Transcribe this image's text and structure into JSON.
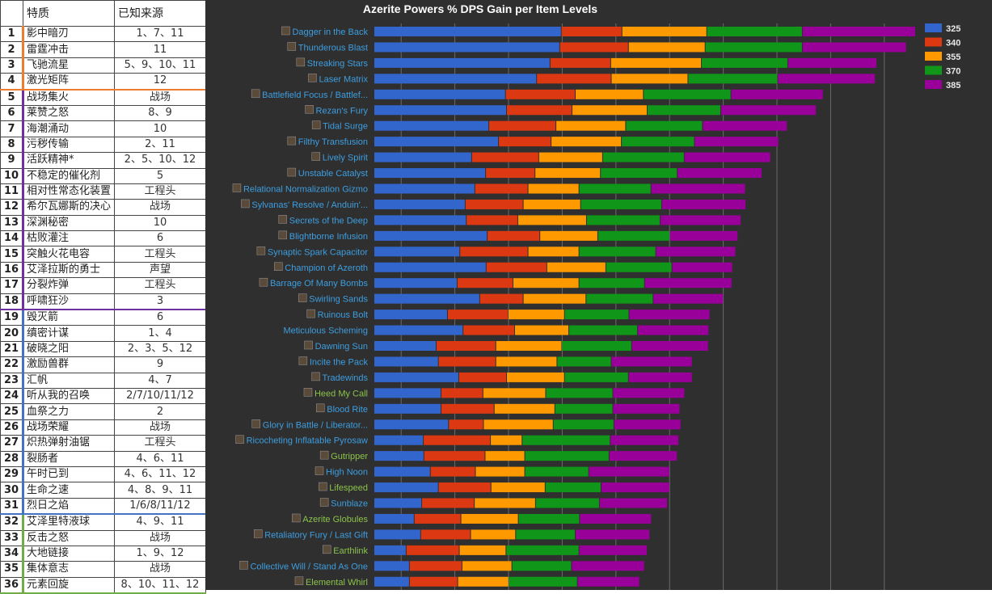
{
  "table": {
    "headers": [
      "",
      "特质",
      "已知来源"
    ],
    "rows": [
      {
        "num": "1",
        "name": "影中暗刃",
        "source": "1、7、11",
        "group": "orange"
      },
      {
        "num": "2",
        "name": "雷霆冲击",
        "source": "11",
        "group": "orange"
      },
      {
        "num": "3",
        "name": "飞驰流星",
        "source": "5、9、10、11",
        "group": "orange"
      },
      {
        "num": "4",
        "name": "激光矩阵",
        "source": "12",
        "group": "orange"
      },
      {
        "num": "5",
        "name": "战场集火",
        "source": "战场",
        "group": "purple"
      },
      {
        "num": "6",
        "name": "莱赞之怒",
        "source": "8、9",
        "group": "purple"
      },
      {
        "num": "7",
        "name": "海潮涌动",
        "source": "10",
        "group": "purple"
      },
      {
        "num": "8",
        "name": "污秽传输",
        "source": "2、11",
        "group": "purple"
      },
      {
        "num": "9",
        "name": "活跃精神*",
        "source": "2、5、10、12",
        "group": "purple"
      },
      {
        "num": "10",
        "name": "不稳定的催化剂",
        "source": "5",
        "group": "purple"
      },
      {
        "num": "11",
        "name": "相对性常态化装置",
        "source": "工程头",
        "group": "purple"
      },
      {
        "num": "12",
        "name": "希尔瓦娜斯的决心",
        "source": "战场",
        "group": "purple"
      },
      {
        "num": "13",
        "name": "深渊秘密",
        "source": "10",
        "group": "purple"
      },
      {
        "num": "14",
        "name": "枯败灌注",
        "source": "6",
        "group": "purple"
      },
      {
        "num": "15",
        "name": "突触火花电容",
        "source": "工程头",
        "group": "purple"
      },
      {
        "num": "16",
        "name": "艾泽拉斯的勇士",
        "source": "声望",
        "group": "purple"
      },
      {
        "num": "17",
        "name": "分裂炸弹",
        "source": "工程头",
        "group": "purple"
      },
      {
        "num": "18",
        "name": "呼啸狂沙",
        "source": "3",
        "group": "purple"
      },
      {
        "num": "19",
        "name": "毁灭箭",
        "source": "6",
        "group": "blue"
      },
      {
        "num": "20",
        "name": "缜密计谋",
        "source": "1、4",
        "group": "blue"
      },
      {
        "num": "21",
        "name": "破晓之阳",
        "source": "2、3、5、12",
        "group": "blue"
      },
      {
        "num": "22",
        "name": "激励兽群",
        "source": "9",
        "group": "blue"
      },
      {
        "num": "23",
        "name": "汇帆",
        "source": "4、7",
        "group": "blue"
      },
      {
        "num": "24",
        "name": "听从我的召唤",
        "source": "2/7/10/11/12",
        "group": "blue"
      },
      {
        "num": "25",
        "name": "血祭之力",
        "source": "2",
        "group": "blue"
      },
      {
        "num": "26",
        "name": "战场荣耀",
        "source": "战场",
        "group": "blue"
      },
      {
        "num": "27",
        "name": "炽热弹射油锯",
        "source": "工程头",
        "group": "blue"
      },
      {
        "num": "28",
        "name": "裂肠者",
        "source": "4、6、11",
        "group": "blue"
      },
      {
        "num": "29",
        "name": "午时已到",
        "source": "4、6、11、12",
        "group": "blue"
      },
      {
        "num": "30",
        "name": "生命之速",
        "source": "4、8、9、11",
        "group": "blue"
      },
      {
        "num": "31",
        "name": "烈日之焰",
        "source": "1/6/8/11/12",
        "group": "blue"
      },
      {
        "num": "32",
        "name": "艾泽里特液球",
        "source": "4、9、11",
        "group": "green"
      },
      {
        "num": "33",
        "name": "反击之怒",
        "source": "战场",
        "group": "green"
      },
      {
        "num": "34",
        "name": "大地链接",
        "source": "1、9、12",
        "group": "green"
      },
      {
        "num": "35",
        "name": "集体意志",
        "source": "战场",
        "group": "green"
      },
      {
        "num": "36",
        "name": "元素回旋",
        "source": "8、10、11、12",
        "group": "green"
      }
    ]
  },
  "chart_data": {
    "type": "bar",
    "orientation": "horizontal",
    "stacked": true,
    "title": "Azerite Powers % DPS Gain per Item Levels",
    "xlabel": "",
    "ylabel": "",
    "grid": true,
    "gridlines_at": [
      0.5,
      1.5,
      2.5,
      3.5,
      4.5,
      5.5,
      6.5,
      7.5,
      8.5,
      9.5
    ],
    "xlim": [
      0,
      10.5
    ],
    "legend_position": "top-right",
    "label_colors": {
      "default": "#3d9ee0",
      "alt": "#8bc34a"
    },
    "categories": [
      {
        "label": "Dagger in the Back",
        "icon": "dagger-icon",
        "color": "default"
      },
      {
        "label": "Thunderous Blast",
        "icon": "thunder-icon",
        "color": "default"
      },
      {
        "label": "Streaking Stars",
        "icon": "stars-icon",
        "color": "default"
      },
      {
        "label": "Laser Matrix",
        "icon": "laser-icon",
        "color": "default"
      },
      {
        "label": "Battlefield Focus / Battlef...",
        "icon": "battlefield-icon",
        "color": "default"
      },
      {
        "label": "Rezan's Fury",
        "icon": "rezan-icon",
        "color": "default"
      },
      {
        "label": "Tidal Surge",
        "icon": "tidal-icon",
        "color": "default"
      },
      {
        "label": "Filthy Transfusion",
        "icon": "filthy-icon",
        "color": "default"
      },
      {
        "label": "Lively Spirit",
        "icon": "spirit-icon",
        "color": "default"
      },
      {
        "label": "Unstable Catalyst",
        "icon": "catalyst-icon",
        "color": "default"
      },
      {
        "label": "Relational Normalization Gizmo",
        "icon": "gizmo-icon",
        "color": "default"
      },
      {
        "label": "Sylvanas' Resolve / Anduin'...",
        "icon": "resolve-icon",
        "color": "default"
      },
      {
        "label": "Secrets of the Deep",
        "icon": "deep-icon",
        "color": "default"
      },
      {
        "label": "Blightborne Infusion",
        "icon": "blight-icon",
        "color": "default"
      },
      {
        "label": "Synaptic Spark Capacitor",
        "icon": "spark-icon",
        "color": "default"
      },
      {
        "label": "Champion of Azeroth",
        "icon": "champion-icon",
        "color": "default"
      },
      {
        "label": "Barrage Of Many Bombs",
        "icon": "bombs-icon",
        "color": "default"
      },
      {
        "label": "Swirling Sands",
        "icon": "sands-icon",
        "color": "default"
      },
      {
        "label": "Ruinous Bolt",
        "icon": "bolt-icon",
        "color": "default"
      },
      {
        "label": "Meticulous Scheming",
        "icon": "",
        "color": "default"
      },
      {
        "label": "Dawning Sun",
        "icon": "sun-icon",
        "color": "default"
      },
      {
        "label": "Incite the Pack",
        "icon": "pack-icon",
        "color": "default"
      },
      {
        "label": "Tradewinds",
        "icon": "wind-icon",
        "color": "default"
      },
      {
        "label": "Heed My Call",
        "icon": "call-icon",
        "color": "alt"
      },
      {
        "label": "Blood Rite",
        "icon": "blood-icon",
        "color": "default"
      },
      {
        "label": "Glory in Battle / Liberator...",
        "icon": "glory-icon",
        "color": "default"
      },
      {
        "label": "Ricocheting Inflatable Pyrosaw",
        "icon": "pyrosaw-icon",
        "color": "default"
      },
      {
        "label": "Gutripper",
        "icon": "gutripper-icon",
        "color": "alt"
      },
      {
        "label": "High Noon",
        "icon": "noon-icon",
        "color": "default"
      },
      {
        "label": "Lifespeed",
        "icon": "lifespeed-icon",
        "color": "alt"
      },
      {
        "label": "Sunblaze",
        "icon": "sunblaze-icon",
        "color": "default"
      },
      {
        "label": "Azerite Globules",
        "icon": "globules-icon",
        "color": "alt"
      },
      {
        "label": "Retaliatory Fury / Last Gift",
        "icon": "fury-icon",
        "color": "default"
      },
      {
        "label": "Earthlink",
        "icon": "earthlink-icon",
        "color": "alt"
      },
      {
        "label": "Collective Will / Stand As One",
        "icon": "will-icon",
        "color": "default"
      },
      {
        "label": "Elemental Whirl",
        "icon": "whirl-icon",
        "color": "alt"
      }
    ],
    "series": [
      {
        "name": "325",
        "color": "#3366cc",
        "values": [
          3.49,
          3.46,
          3.28,
          3.03,
          2.45,
          2.47,
          2.14,
          2.32,
          1.82,
          2.08,
          1.88,
          1.7,
          1.72,
          2.11,
          1.6,
          2.09,
          1.55,
          1.97,
          1.37,
          1.66,
          1.16,
          1.2,
          1.58,
          1.25,
          1.25,
          1.39,
          0.92,
          0.93,
          1.05,
          1.2,
          0.89,
          0.75,
          0.87,
          0.6,
          0.66,
          0.66
        ]
      },
      {
        "name": "340",
        "color": "#dc3912",
        "values": [
          1.13,
          1.28,
          1.13,
          1.39,
          1.3,
          1.22,
          1.25,
          0.98,
          1.25,
          0.92,
          0.99,
          1.08,
          0.96,
          0.98,
          1.27,
          1.13,
          1.04,
          0.81,
          1.13,
          0.96,
          1.11,
          1.07,
          0.89,
          0.78,
          0.99,
          0.65,
          1.25,
          1.14,
          0.84,
          0.98,
          0.98,
          0.87,
          0.93,
          0.99,
          0.98,
          0.9
        ]
      },
      {
        "name": "355",
        "color": "#ff9900",
        "values": [
          1.58,
          1.43,
          1.69,
          1.43,
          1.27,
          1.4,
          1.3,
          1.31,
          1.19,
          1.22,
          0.95,
          1.07,
          1.28,
          1.08,
          0.95,
          1.1,
          1.23,
          1.17,
          1.05,
          1.01,
          1.23,
          1.14,
          1.08,
          1.17,
          1.13,
          1.3,
          0.59,
          0.74,
          0.92,
          1.01,
          1.14,
          1.07,
          0.84,
          0.87,
          0.93,
          0.95
        ]
      },
      {
        "name": "370",
        "color": "#109618",
        "values": [
          1.78,
          1.81,
          1.61,
          1.67,
          1.63,
          1.37,
          1.43,
          1.36,
          1.52,
          1.43,
          1.34,
          1.51,
          1.37,
          1.34,
          1.43,
          1.23,
          1.22,
          1.25,
          1.2,
          1.28,
          1.3,
          1.01,
          1.19,
          1.25,
          1.08,
          1.13,
          1.64,
          1.57,
          1.19,
          1.04,
          1.19,
          1.14,
          1.11,
          1.36,
          1.11,
          1.28
        ]
      },
      {
        "name": "385",
        "color": "#990099",
        "values": [
          2.11,
          1.94,
          1.66,
          1.82,
          1.72,
          1.78,
          1.58,
          1.57,
          1.61,
          1.58,
          1.76,
          1.57,
          1.51,
          1.27,
          1.49,
          1.13,
          1.63,
          1.31,
          1.51,
          1.33,
          1.43,
          1.51,
          1.19,
          1.34,
          1.25,
          1.25,
          1.28,
          1.27,
          1.51,
          1.28,
          1.27,
          1.34,
          1.39,
          1.27,
          1.36,
          1.16
        ]
      }
    ]
  }
}
